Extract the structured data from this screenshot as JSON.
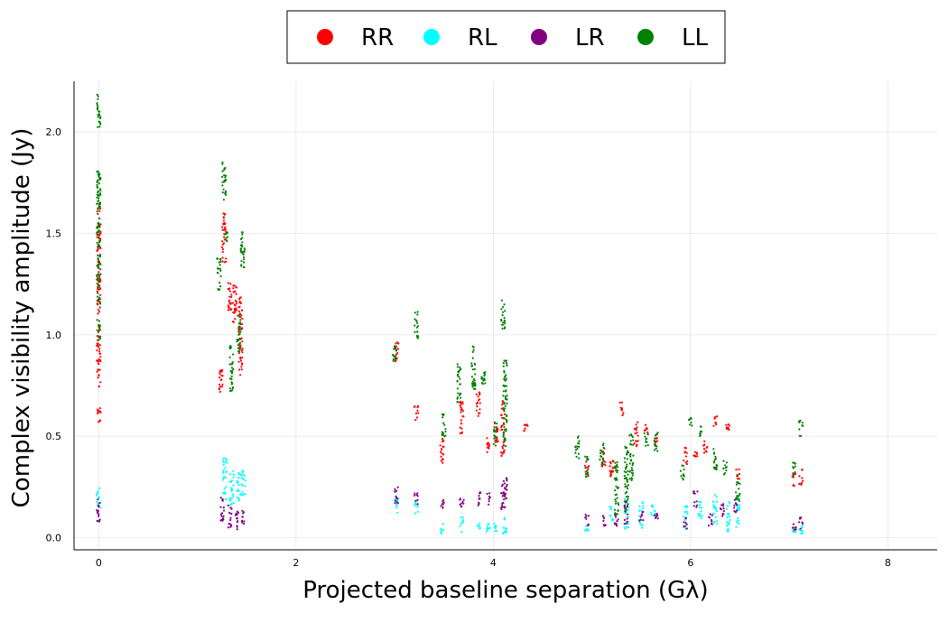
{
  "chart_data": {
    "type": "scatter",
    "xlabel": "Projected baseline separation (Gλ)",
    "ylabel": "Complex visibility amplitude (Jy)",
    "xlim": [
      -0.25,
      8.5
    ],
    "ylim": [
      -0.06,
      2.25
    ],
    "xticks": [
      0,
      2,
      4,
      6,
      8
    ],
    "yticks": [
      0.0,
      0.5,
      1.0,
      1.5,
      2.0
    ],
    "xtick_labels": [
      "0",
      "2",
      "4",
      "6",
      "8"
    ],
    "ytick_labels": [
      "0.0",
      "0.5",
      "1.0",
      "1.5",
      "2.0"
    ],
    "grid": true,
    "legend_position": "top-center",
    "series": [
      {
        "name": "RR",
        "color": "#ff0000",
        "segments": [
          [
            0.0,
            0.56,
            0.65
          ],
          [
            0.0,
            0.74,
            1.05
          ],
          [
            0.0,
            1.1,
            1.66
          ],
          [
            1.24,
            0.71,
            0.85
          ],
          [
            1.27,
            1.35,
            1.6
          ],
          [
            1.33,
            1.12,
            1.28
          ],
          [
            1.38,
            1.05,
            1.25
          ],
          [
            1.44,
            0.8,
            1.2
          ],
          [
            3.02,
            0.85,
            0.97
          ],
          [
            3.22,
            0.58,
            0.65
          ],
          [
            3.48,
            0.35,
            0.49
          ],
          [
            3.68,
            0.5,
            0.68
          ],
          [
            3.85,
            0.6,
            0.72
          ],
          [
            3.95,
            0.42,
            0.5
          ],
          [
            4.03,
            0.47,
            0.58
          ],
          [
            4.1,
            0.4,
            0.68
          ],
          [
            4.33,
            0.52,
            0.56
          ],
          [
            4.95,
            0.3,
            0.38
          ],
          [
            5.12,
            0.35,
            0.45
          ],
          [
            5.2,
            0.25,
            0.38
          ],
          [
            5.3,
            0.6,
            0.67
          ],
          [
            5.45,
            0.45,
            0.58
          ],
          [
            5.55,
            0.5,
            0.56
          ],
          [
            5.65,
            0.45,
            0.52
          ],
          [
            5.95,
            0.36,
            0.45
          ],
          [
            6.05,
            0.4,
            0.45
          ],
          [
            6.15,
            0.4,
            0.48
          ],
          [
            6.25,
            0.54,
            0.6
          ],
          [
            6.38,
            0.52,
            0.56
          ],
          [
            6.48,
            0.28,
            0.34
          ],
          [
            7.05,
            0.25,
            0.32
          ],
          [
            7.12,
            0.26,
            0.34
          ]
        ]
      },
      {
        "name": "RL",
        "color": "#00ffff",
        "segments": [
          [
            0.0,
            0.14,
            0.25
          ],
          [
            1.28,
            0.18,
            0.41
          ],
          [
            1.35,
            0.16,
            0.34
          ],
          [
            1.42,
            0.17,
            0.32
          ],
          [
            1.47,
            0.2,
            0.33
          ],
          [
            3.02,
            0.11,
            0.21
          ],
          [
            3.22,
            0.1,
            0.18
          ],
          [
            3.48,
            0.02,
            0.07
          ],
          [
            3.68,
            0.02,
            0.1
          ],
          [
            3.85,
            0.03,
            0.08
          ],
          [
            3.95,
            0.03,
            0.08
          ],
          [
            4.03,
            0.02,
            0.07
          ],
          [
            4.12,
            0.01,
            0.1
          ],
          [
            4.95,
            0.03,
            0.06
          ],
          [
            5.2,
            0.08,
            0.16
          ],
          [
            5.35,
            0.02,
            0.2
          ],
          [
            5.5,
            0.04,
            0.18
          ],
          [
            5.62,
            0.1,
            0.17
          ],
          [
            5.95,
            0.04,
            0.16
          ],
          [
            6.1,
            0.08,
            0.18
          ],
          [
            6.25,
            0.06,
            0.22
          ],
          [
            6.38,
            0.03,
            0.18
          ],
          [
            6.48,
            0.05,
            0.22
          ],
          [
            7.05,
            0.02,
            0.05
          ],
          [
            7.12,
            0.02,
            0.06
          ]
        ]
      },
      {
        "name": "LR",
        "color": "#800080",
        "segments": [
          [
            0.0,
            0.07,
            0.19
          ],
          [
            1.25,
            0.08,
            0.2
          ],
          [
            1.33,
            0.05,
            0.16
          ],
          [
            1.4,
            0.04,
            0.14
          ],
          [
            1.47,
            0.06,
            0.14
          ],
          [
            3.02,
            0.16,
            0.25
          ],
          [
            3.22,
            0.16,
            0.22
          ],
          [
            3.48,
            0.14,
            0.2
          ],
          [
            3.68,
            0.15,
            0.22
          ],
          [
            3.85,
            0.16,
            0.24
          ],
          [
            3.95,
            0.16,
            0.22
          ],
          [
            4.1,
            0.14,
            0.28
          ],
          [
            4.12,
            0.18,
            0.3
          ],
          [
            4.95,
            0.06,
            0.12
          ],
          [
            5.12,
            0.05,
            0.11
          ],
          [
            5.25,
            0.04,
            0.12
          ],
          [
            5.35,
            0.06,
            0.18
          ],
          [
            5.5,
            0.08,
            0.13
          ],
          [
            5.65,
            0.08,
            0.12
          ],
          [
            5.95,
            0.04,
            0.1
          ],
          [
            6.05,
            0.15,
            0.23
          ],
          [
            6.2,
            0.05,
            0.12
          ],
          [
            6.32,
            0.1,
            0.18
          ],
          [
            6.45,
            0.12,
            0.2
          ],
          [
            7.05,
            0.03,
            0.07
          ],
          [
            7.12,
            0.04,
            0.1
          ]
        ]
      },
      {
        "name": "LL",
        "color": "#008000",
        "segments": [
          [
            0.0,
            0.96,
            1.81
          ],
          [
            0.0,
            2.02,
            2.19
          ],
          [
            1.22,
            1.22,
            1.38
          ],
          [
            1.27,
            1.65,
            1.85
          ],
          [
            1.29,
            1.45,
            1.53
          ],
          [
            1.35,
            0.72,
            0.95
          ],
          [
            1.42,
            0.9,
            1.1
          ],
          [
            1.46,
            1.3,
            1.51
          ],
          [
            3.0,
            0.85,
            0.95
          ],
          [
            3.22,
            0.98,
            1.12
          ],
          [
            3.5,
            0.5,
            0.62
          ],
          [
            3.65,
            0.65,
            0.86
          ],
          [
            3.8,
            0.72,
            0.95
          ],
          [
            3.9,
            0.74,
            0.85
          ],
          [
            4.02,
            0.45,
            0.57
          ],
          [
            4.1,
            1.02,
            1.17
          ],
          [
            4.12,
            0.45,
            0.89
          ],
          [
            4.85,
            0.38,
            0.5
          ],
          [
            4.95,
            0.3,
            0.4
          ],
          [
            5.1,
            0.35,
            0.48
          ],
          [
            5.25,
            0.1,
            0.38
          ],
          [
            5.35,
            0.12,
            0.45
          ],
          [
            5.4,
            0.28,
            0.52
          ],
          [
            5.55,
            0.45,
            0.52
          ],
          [
            5.65,
            0.42,
            0.52
          ],
          [
            5.92,
            0.28,
            0.36
          ],
          [
            6.0,
            0.55,
            0.6
          ],
          [
            6.1,
            0.5,
            0.56
          ],
          [
            6.25,
            0.33,
            0.45
          ],
          [
            6.35,
            0.3,
            0.38
          ],
          [
            6.48,
            0.18,
            0.32
          ],
          [
            7.05,
            0.3,
            0.37
          ],
          [
            7.12,
            0.5,
            0.58
          ]
        ]
      }
    ]
  }
}
